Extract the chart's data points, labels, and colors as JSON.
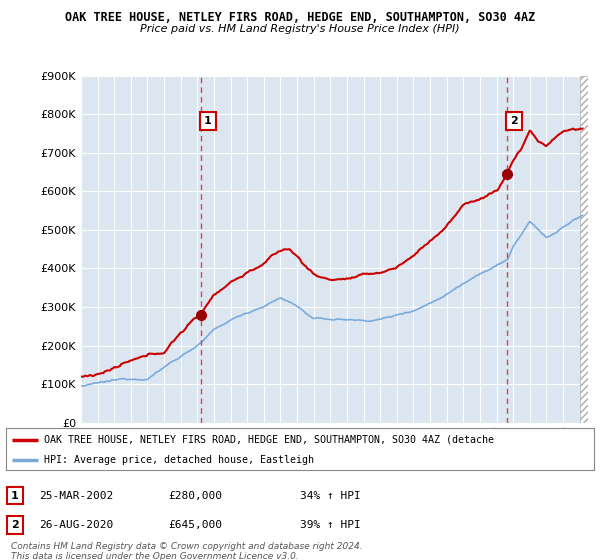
{
  "title1": "OAK TREE HOUSE, NETLEY FIRS ROAD, HEDGE END, SOUTHAMPTON, SO30 4AZ",
  "title2": "Price paid vs. HM Land Registry's House Price Index (HPI)",
  "legend_red": "OAK TREE HOUSE, NETLEY FIRS ROAD, HEDGE END, SOUTHAMPTON, SO30 4AZ (detache",
  "legend_blue": "HPI: Average price, detached house, Eastleigh",
  "footer1": "Contains HM Land Registry data © Crown copyright and database right 2024.",
  "footer2": "This data is licensed under the Open Government Licence v3.0.",
  "sale1_label": "1",
  "sale1_date": "25-MAR-2002",
  "sale1_price": "£280,000",
  "sale1_hpi": "34% ↑ HPI",
  "sale1_x": 2002.23,
  "sale1_y": 280000,
  "sale2_label": "2",
  "sale2_date": "26-AUG-2020",
  "sale2_price": "£645,000",
  "sale2_hpi": "39% ↑ HPI",
  "sale2_x": 2020.65,
  "sale2_y": 645000,
  "background_color": "#ffffff",
  "plot_bg_color": "#dce6f1",
  "grid_color": "#ffffff",
  "red_line_color": "#cc0000",
  "blue_line_color": "#7aaadd",
  "vline_color": "#dd4444",
  "marker_color": "#990000",
  "xmin": 1995,
  "xmax": 2025.5,
  "ymin": 0,
  "ymax": 900000,
  "yticks": [
    0,
    100000,
    200000,
    300000,
    400000,
    500000,
    600000,
    700000,
    800000,
    900000
  ]
}
